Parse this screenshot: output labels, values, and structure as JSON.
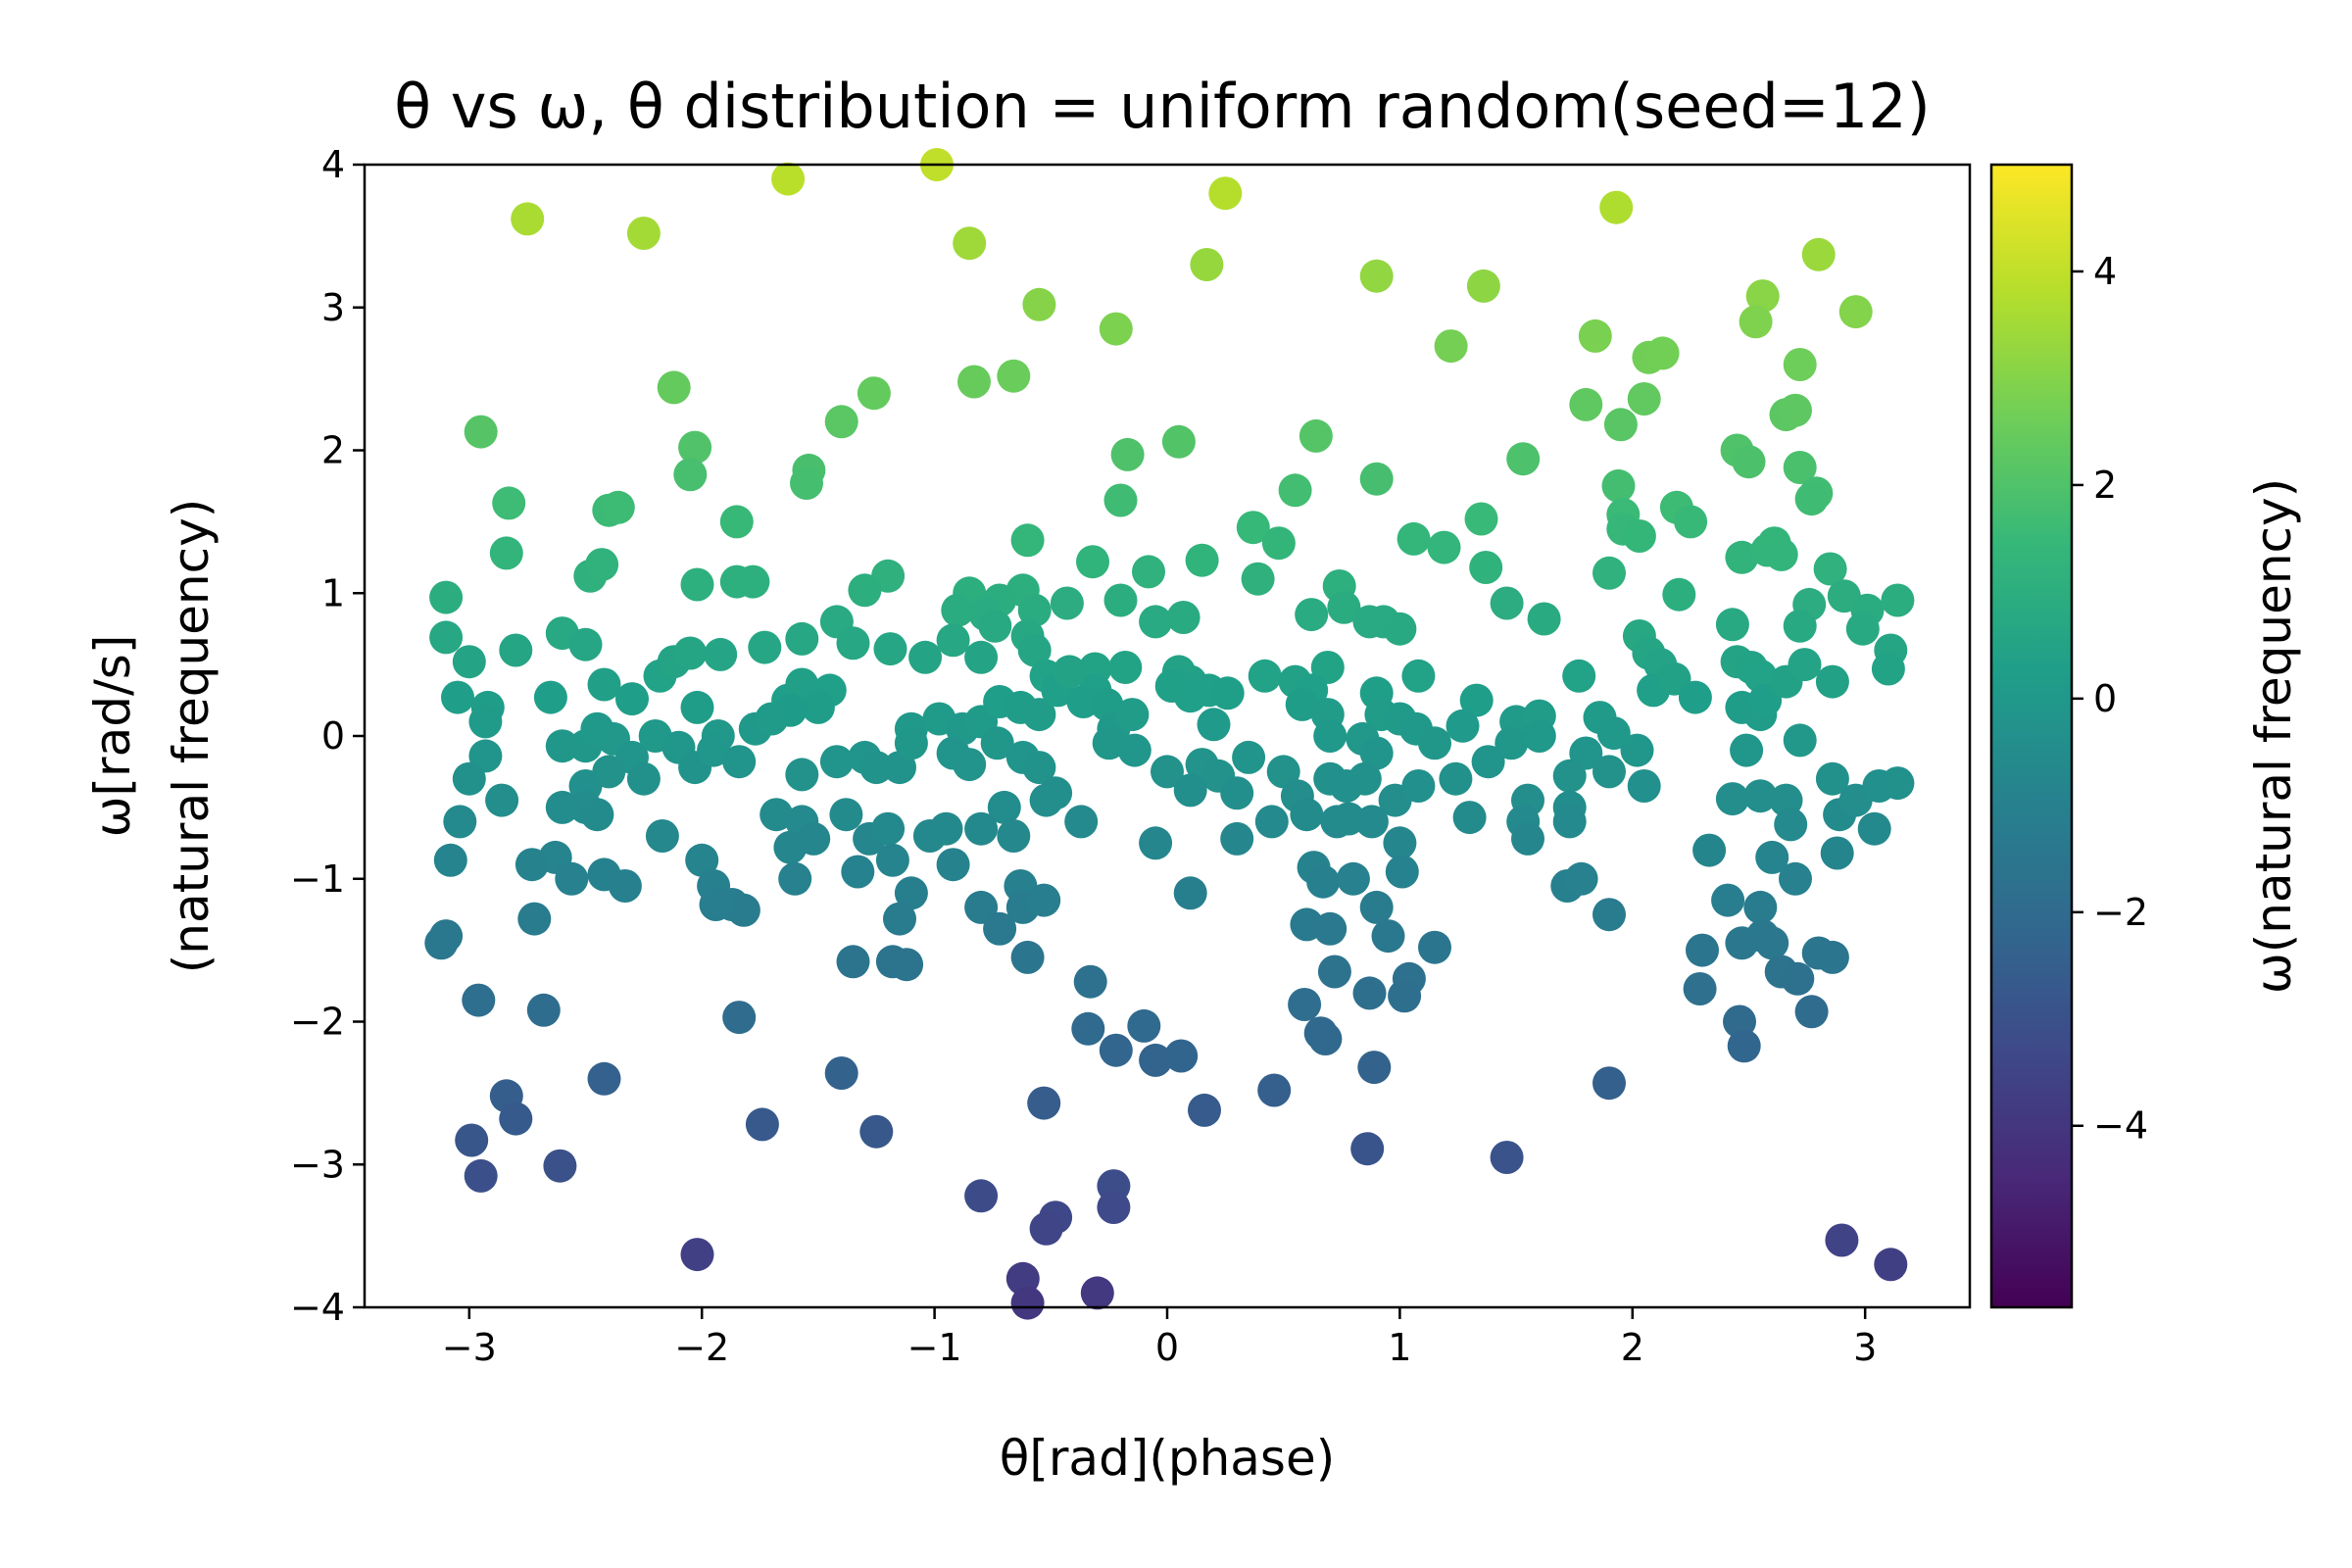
{
  "chart_data": {
    "type": "scatter",
    "title": "θ vs ω, θ distribution = uniform random(seed=12)",
    "xlabel": "θ[rad](phase)",
    "ylabel_lines": [
      "ω[rad/s]",
      "(natural frequency)"
    ],
    "xlim": [
      -3.45,
      3.45
    ],
    "ylim": [
      -4,
      4
    ],
    "xticks": [
      -3,
      -2,
      -1,
      0,
      1,
      2,
      3
    ],
    "yticks": [
      -4,
      -3,
      -2,
      -1,
      0,
      1,
      2,
      3,
      4
    ],
    "grid": false,
    "colorbar": {
      "label": "ω(natural frequency)",
      "colormap": "viridis",
      "range": [
        -5.7,
        5.0
      ],
      "ticks": [
        -4,
        -2,
        0,
        2,
        4
      ]
    },
    "colors": {
      "viridis": [
        "#440154",
        "#482878",
        "#3e4989",
        "#31688e",
        "#26828e",
        "#1f9e89",
        "#35b779",
        "#6ece58",
        "#b5de2b",
        "#fde725"
      ]
    },
    "points": [
      [
        -2.75,
        3.62
      ],
      [
        -2.25,
        3.52
      ],
      [
        -1.63,
        3.9
      ],
      [
        -0.99,
        4.0
      ],
      [
        0.25,
        3.8
      ],
      [
        1.93,
        3.7
      ],
      [
        -0.85,
        3.45
      ],
      [
        0.17,
        3.3
      ],
      [
        0.9,
        3.22
      ],
      [
        1.36,
        3.15
      ],
      [
        2.8,
        3.37
      ],
      [
        2.56,
        3.08
      ],
      [
        2.53,
        2.9
      ],
      [
        2.96,
        2.97
      ],
      [
        -0.55,
        3.02
      ],
      [
        -0.22,
        2.85
      ],
      [
        1.22,
        2.73
      ],
      [
        1.84,
        2.8
      ],
      [
        2.07,
        2.65
      ],
      [
        2.13,
        2.68
      ],
      [
        -0.83,
        2.48
      ],
      [
        -0.66,
        2.52
      ],
      [
        2.72,
        2.6
      ],
      [
        -2.12,
        2.44
      ],
      [
        -1.26,
        2.4
      ],
      [
        2.05,
        2.36
      ],
      [
        -2.95,
        2.13
      ],
      [
        -1.4,
        2.2
      ],
      [
        1.8,
        2.32
      ],
      [
        1.95,
        2.18
      ],
      [
        2.66,
        2.25
      ],
      [
        2.7,
        2.28
      ],
      [
        0.64,
        2.1
      ],
      [
        0.05,
        2.06
      ],
      [
        -0.17,
        1.97
      ],
      [
        -2.03,
        2.02
      ],
      [
        -2.05,
        1.83
      ],
      [
        -1.54,
        1.86
      ],
      [
        -1.55,
        1.77
      ],
      [
        1.53,
        1.94
      ],
      [
        2.45,
        2.0
      ],
      [
        2.5,
        1.92
      ],
      [
        2.72,
        1.88
      ],
      [
        0.55,
        1.72
      ],
      [
        0.9,
        1.8
      ],
      [
        -0.2,
        1.65
      ],
      [
        -2.83,
        1.63
      ],
      [
        -2.4,
        1.58
      ],
      [
        -2.36,
        1.6
      ],
      [
        -1.85,
        1.5
      ],
      [
        1.94,
        1.75
      ],
      [
        1.96,
        1.55
      ],
      [
        2.19,
        1.6
      ],
      [
        2.25,
        1.5
      ],
      [
        2.79,
        1.7
      ],
      [
        2.77,
        1.66
      ],
      [
        1.35,
        1.52
      ],
      [
        0.37,
        1.46
      ],
      [
        0.48,
        1.35
      ],
      [
        1.06,
        1.38
      ],
      [
        1.19,
        1.32
      ],
      [
        -0.6,
        1.37
      ],
      [
        -2.84,
        1.28
      ],
      [
        -2.48,
        1.12
      ],
      [
        -2.43,
        1.2
      ],
      [
        -1.2,
        1.12
      ],
      [
        -1.3,
        1.02
      ],
      [
        -1.85,
        1.08
      ],
      [
        -1.78,
        1.08
      ],
      [
        -2.02,
        1.06
      ],
      [
        1.96,
        1.45
      ],
      [
        2.03,
        1.4
      ],
      [
        1.9,
        1.14
      ],
      [
        2.47,
        1.25
      ],
      [
        2.58,
        1.3
      ],
      [
        2.61,
        1.35
      ],
      [
        2.64,
        1.27
      ],
      [
        2.85,
        1.17
      ],
      [
        -0.32,
        1.22
      ],
      [
        0.15,
        1.23
      ],
      [
        -0.08,
        1.15
      ],
      [
        0.39,
        1.1
      ],
      [
        -0.2,
        0.95
      ],
      [
        -0.85,
        1.0
      ],
      [
        -0.62,
        1.02
      ],
      [
        0.74,
        1.05
      ],
      [
        1.37,
        1.18
      ],
      [
        2.2,
        0.99
      ],
      [
        -3.1,
        0.97
      ],
      [
        -3.1,
        0.69
      ],
      [
        -0.43,
        0.93
      ],
      [
        0.76,
        0.9
      ],
      [
        0.87,
        0.8
      ],
      [
        0.93,
        0.8
      ],
      [
        1.0,
        0.75
      ],
      [
        1.46,
        0.93
      ],
      [
        1.62,
        0.82
      ],
      [
        2.76,
        0.92
      ],
      [
        2.72,
        0.77
      ],
      [
        2.91,
        0.98
      ],
      [
        3.01,
        0.88
      ],
      [
        3.14,
        0.95
      ],
      [
        -0.72,
        0.95
      ],
      [
        -0.78,
        0.85
      ],
      [
        -0.9,
        0.88
      ],
      [
        -0.57,
        0.88
      ],
      [
        -0.74,
        0.77
      ],
      [
        -0.6,
        0.7
      ],
      [
        -0.05,
        0.8
      ],
      [
        0.07,
        0.83
      ],
      [
        0.62,
        0.85
      ],
      [
        -2.6,
        0.72
      ],
      [
        -2.5,
        0.64
      ],
      [
        -2.8,
        0.6
      ],
      [
        -3.0,
        0.52
      ],
      [
        -1.92,
        0.57
      ],
      [
        -1.73,
        0.62
      ],
      [
        -1.57,
        0.68
      ],
      [
        -1.42,
        0.8
      ],
      [
        -1.35,
        0.65
      ],
      [
        -1.19,
        0.61
      ],
      [
        -1.04,
        0.55
      ],
      [
        -0.92,
        0.67
      ],
      [
        -0.8,
        0.55
      ],
      [
        -0.57,
        0.6
      ],
      [
        -0.52,
        0.42
      ],
      [
        -0.31,
        0.47
      ],
      [
        -0.18,
        0.48
      ],
      [
        -0.31,
        0.32
      ],
      [
        0.05,
        0.45
      ],
      [
        0.1,
        0.38
      ],
      [
        0.1,
        0.28
      ],
      [
        0.18,
        0.32
      ],
      [
        0.26,
        0.3
      ],
      [
        0.42,
        0.42
      ],
      [
        0.55,
        0.38
      ],
      [
        0.69,
        0.48
      ],
      [
        0.62,
        0.32
      ],
      [
        0.58,
        0.22
      ],
      [
        0.69,
        0.15
      ],
      [
        0.9,
        0.3
      ],
      [
        0.92,
        0.15
      ],
      [
        1.0,
        0.12
      ],
      [
        1.07,
        0.05
      ],
      [
        1.08,
        0.42
      ],
      [
        1.33,
        0.25
      ],
      [
        1.5,
        0.1
      ],
      [
        1.6,
        0.14
      ],
      [
        1.77,
        0.42
      ],
      [
        1.86,
        0.13
      ],
      [
        2.03,
        0.7
      ],
      [
        2.07,
        0.58
      ],
      [
        2.12,
        0.5
      ],
      [
        2.09,
        0.32
      ],
      [
        2.18,
        0.4
      ],
      [
        2.27,
        0.27
      ],
      [
        2.43,
        0.78
      ],
      [
        2.45,
        0.52
      ],
      [
        2.51,
        0.48
      ],
      [
        2.55,
        0.42
      ],
      [
        2.47,
        0.2
      ],
      [
        2.55,
        0.15
      ],
      [
        2.57,
        0.25
      ],
      [
        2.66,
        0.38
      ],
      [
        2.74,
        0.5
      ],
      [
        2.86,
        0.38
      ],
      [
        2.99,
        0.75
      ],
      [
        3.11,
        0.6
      ],
      [
        3.1,
        0.47
      ],
      [
        -3.05,
        0.27
      ],
      [
        -2.92,
        0.2
      ],
      [
        -2.93,
        0.1
      ],
      [
        -2.65,
        0.27
      ],
      [
        -2.42,
        0.36
      ],
      [
        -2.3,
        0.26
      ],
      [
        -2.18,
        0.42
      ],
      [
        -2.12,
        0.52
      ],
      [
        -2.05,
        0.58
      ],
      [
        -2.02,
        0.2
      ],
      [
        -1.93,
        0.0
      ],
      [
        -1.77,
        0.05
      ],
      [
        -1.7,
        0.12
      ],
      [
        -1.63,
        0.25
      ],
      [
        -1.57,
        0.36
      ],
      [
        -1.5,
        0.28
      ],
      [
        -1.45,
        0.32
      ],
      [
        -1.5,
        0.2
      ],
      [
        -1.62,
        0.18
      ],
      [
        -1.1,
        0.05
      ],
      [
        -0.98,
        0.12
      ],
      [
        -0.88,
        0.05
      ],
      [
        -0.8,
        0.1
      ],
      [
        -0.72,
        0.24
      ],
      [
        -0.63,
        0.2
      ],
      [
        -0.55,
        0.15
      ],
      [
        -0.47,
        0.32
      ],
      [
        -0.42,
        0.45
      ],
      [
        -0.36,
        0.24
      ],
      [
        -0.26,
        0.22
      ],
      [
        -0.23,
        0.05
      ],
      [
        -0.15,
        0.15
      ],
      [
        0.02,
        0.35
      ],
      [
        0.2,
        0.08
      ],
      [
        0.7,
        0.0
      ],
      [
        0.84,
        -0.02
      ],
      [
        1.15,
        -0.05
      ],
      [
        1.27,
        0.07
      ],
      [
        1.48,
        -0.05
      ],
      [
        1.6,
        0.0
      ],
      [
        1.8,
        -0.12
      ],
      [
        1.92,
        0.02
      ],
      [
        2.02,
        -0.1
      ],
      [
        2.49,
        -0.1
      ],
      [
        2.72,
        -0.03
      ],
      [
        -2.93,
        -0.14
      ],
      [
        -2.6,
        -0.07
      ],
      [
        -2.5,
        -0.07
      ],
      [
        -2.45,
        0.05
      ],
      [
        -2.38,
        -0.02
      ],
      [
        -2.3,
        -0.15
      ],
      [
        -2.2,
        0.0
      ],
      [
        -2.1,
        -0.08
      ],
      [
        -2.03,
        -0.22
      ],
      [
        -2.25,
        -0.3
      ],
      [
        -2.4,
        -0.25
      ],
      [
        -2.5,
        -0.35
      ],
      [
        -1.95,
        -0.1
      ],
      [
        -1.84,
        -0.18
      ],
      [
        -1.57,
        -0.27
      ],
      [
        -1.42,
        -0.18
      ],
      [
        -1.3,
        -0.15
      ],
      [
        -1.25,
        -0.22
      ],
      [
        -1.15,
        -0.22
      ],
      [
        -1.1,
        -0.05
      ],
      [
        -0.92,
        -0.12
      ],
      [
        -0.85,
        -0.2
      ],
      [
        -0.73,
        -0.05
      ],
      [
        -0.62,
        -0.15
      ],
      [
        -0.55,
        -0.22
      ],
      [
        -0.25,
        -0.05
      ],
      [
        -0.14,
        -0.1
      ],
      [
        0.0,
        -0.25
      ],
      [
        0.15,
        -0.2
      ],
      [
        0.22,
        -0.28
      ],
      [
        0.1,
        -0.38
      ],
      [
        0.35,
        -0.15
      ],
      [
        0.3,
        -0.4
      ],
      [
        0.5,
        -0.25
      ],
      [
        0.56,
        -0.42
      ],
      [
        0.7,
        -0.3
      ],
      [
        0.77,
        -0.35
      ],
      [
        0.9,
        -0.12
      ],
      [
        0.85,
        -0.3
      ],
      [
        0.98,
        -0.45
      ],
      [
        1.08,
        -0.35
      ],
      [
        1.24,
        -0.3
      ],
      [
        1.38,
        -0.18
      ],
      [
        1.55,
        -0.45
      ],
      [
        1.73,
        -0.28
      ],
      [
        1.73,
        -0.5
      ],
      [
        1.9,
        -0.25
      ],
      [
        2.05,
        -0.35
      ],
      [
        2.43,
        -0.44
      ],
      [
        2.55,
        -0.42
      ],
      [
        2.66,
        -0.45
      ],
      [
        2.86,
        -0.3
      ],
      [
        2.89,
        -0.55
      ],
      [
        2.96,
        -0.45
      ],
      [
        3.06,
        -0.35
      ],
      [
        3.14,
        -0.33
      ],
      [
        3.04,
        -0.65
      ],
      [
        -3.0,
        -0.3
      ],
      [
        -2.86,
        -0.45
      ],
      [
        -3.04,
        -0.6
      ],
      [
        -2.6,
        -0.5
      ],
      [
        -2.5,
        -0.5
      ],
      [
        -2.45,
        -0.55
      ],
      [
        -2.17,
        -0.7
      ],
      [
        -1.68,
        -0.55
      ],
      [
        -1.57,
        -0.6
      ],
      [
        -1.62,
        -0.78
      ],
      [
        -1.52,
        -0.72
      ],
      [
        -1.38,
        -0.55
      ],
      [
        -1.28,
        -0.72
      ],
      [
        -1.2,
        -0.65
      ],
      [
        -1.02,
        -0.7
      ],
      [
        -0.95,
        -0.65
      ],
      [
        -0.7,
        -0.5
      ],
      [
        -0.66,
        -0.7
      ],
      [
        -0.8,
        -0.65
      ],
      [
        -0.52,
        -0.45
      ],
      [
        -0.48,
        -0.4
      ],
      [
        -0.37,
        -0.6
      ],
      [
        -0.05,
        -0.75
      ],
      [
        0.3,
        -0.72
      ],
      [
        0.45,
        -0.6
      ],
      [
        0.6,
        -0.55
      ],
      [
        0.73,
        -0.6
      ],
      [
        0.78,
        -0.58
      ],
      [
        0.88,
        -0.6
      ],
      [
        1.0,
        -0.75
      ],
      [
        1.3,
        -0.57
      ],
      [
        1.53,
        -0.6
      ],
      [
        1.55,
        -0.72
      ],
      [
        1.73,
        -0.6
      ],
      [
        2.33,
        -0.8
      ],
      [
        2.6,
        -0.85
      ],
      [
        2.68,
        -0.62
      ],
      [
        2.88,
        -0.82
      ],
      [
        -2.63,
        -0.85
      ],
      [
        -2.73,
        -0.9
      ],
      [
        -3.08,
        -0.87
      ],
      [
        -2.56,
        -1.0
      ],
      [
        -2.42,
        -0.97
      ],
      [
        -2.33,
        -1.05
      ],
      [
        -2.0,
        -0.87
      ],
      [
        -1.95,
        -1.05
      ],
      [
        -1.87,
        -1.18
      ],
      [
        -1.82,
        -1.22
      ],
      [
        -1.6,
        -1.0
      ],
      [
        -1.33,
        -0.95
      ],
      [
        -1.18,
        -0.87
      ],
      [
        -1.1,
        -1.1
      ],
      [
        -0.92,
        -0.9
      ],
      [
        -0.8,
        -1.2
      ],
      [
        -0.72,
        -1.35
      ],
      [
        -0.63,
        -1.05
      ],
      [
        -0.62,
        -1.2
      ],
      [
        -0.53,
        -1.15
      ],
      [
        -0.6,
        -1.55
      ],
      [
        0.1,
        -1.1
      ],
      [
        0.63,
        -0.92
      ],
      [
        0.67,
        -1.02
      ],
      [
        0.6,
        -1.32
      ],
      [
        0.7,
        -1.35
      ],
      [
        0.8,
        -1.0
      ],
      [
        0.9,
        -1.2
      ],
      [
        0.95,
        -1.4
      ],
      [
        1.01,
        -0.95
      ],
      [
        1.72,
        -1.05
      ],
      [
        1.78,
        -1.0
      ],
      [
        1.9,
        -1.25
      ],
      [
        2.41,
        -1.15
      ],
      [
        2.47,
        -1.45
      ],
      [
        2.55,
        -1.2
      ],
      [
        2.56,
        -1.4
      ],
      [
        2.7,
        -1.0
      ],
      [
        2.8,
        -1.52
      ],
      [
        2.86,
        -1.55
      ],
      [
        -3.12,
        -1.45
      ],
      [
        -3.1,
        -1.4
      ],
      [
        -2.72,
        -1.28
      ],
      [
        -1.94,
        -1.18
      ],
      [
        -1.35,
        -1.58
      ],
      [
        -1.15,
        -1.28
      ],
      [
        -1.12,
        -1.6
      ],
      [
        -1.18,
        -1.58
      ],
      [
        0.72,
        -1.65
      ],
      [
        1.15,
        -1.48
      ],
      [
        2.3,
        -1.5
      ],
      [
        2.6,
        -1.45
      ],
      [
        2.64,
        -1.65
      ],
      [
        2.71,
        -1.7
      ],
      [
        2.77,
        -1.93
      ],
      [
        -2.96,
        -1.85
      ],
      [
        -2.68,
        -1.92
      ],
      [
        -1.84,
        -1.97
      ],
      [
        -0.33,
        -1.72
      ],
      [
        0.59,
        -1.88
      ],
      [
        0.66,
        -2.08
      ],
      [
        0.68,
        -2.12
      ],
      [
        0.87,
        -1.8
      ],
      [
        1.04,
        -1.7
      ],
      [
        1.02,
        -1.82
      ],
      [
        2.29,
        -1.77
      ],
      [
        2.46,
        -2.0
      ],
      [
        2.48,
        -2.17
      ],
      [
        -0.34,
        -2.05
      ],
      [
        -0.22,
        -2.2
      ],
      [
        -0.1,
        -2.03
      ],
      [
        -0.05,
        -2.27
      ],
      [
        0.06,
        -2.24
      ],
      [
        0.89,
        -2.32
      ],
      [
        -2.42,
        -2.4
      ],
      [
        -2.84,
        -2.52
      ],
      [
        -2.8,
        -2.68
      ],
      [
        -1.74,
        -2.72
      ],
      [
        -1.4,
        -2.36
      ],
      [
        -1.25,
        -2.77
      ],
      [
        -0.53,
        -2.57
      ],
      [
        0.16,
        -2.62
      ],
      [
        0.46,
        -2.48
      ],
      [
        1.9,
        -2.43
      ],
      [
        -2.99,
        -2.83
      ],
      [
        -2.95,
        -3.08
      ],
      [
        -2.61,
        -3.01
      ],
      [
        0.86,
        -2.89
      ],
      [
        1.46,
        -2.95
      ],
      [
        -0.8,
        -3.22
      ],
      [
        -0.23,
        -3.15
      ],
      [
        -0.23,
        -3.3
      ],
      [
        -0.48,
        -3.37
      ],
      [
        -0.52,
        -3.45
      ],
      [
        -2.02,
        -3.63
      ],
      [
        2.9,
        -3.53
      ],
      [
        3.11,
        -3.7
      ],
      [
        -0.62,
        -3.8
      ],
      [
        -0.6,
        -3.97
      ],
      [
        -0.3,
        -3.9
      ]
    ]
  }
}
